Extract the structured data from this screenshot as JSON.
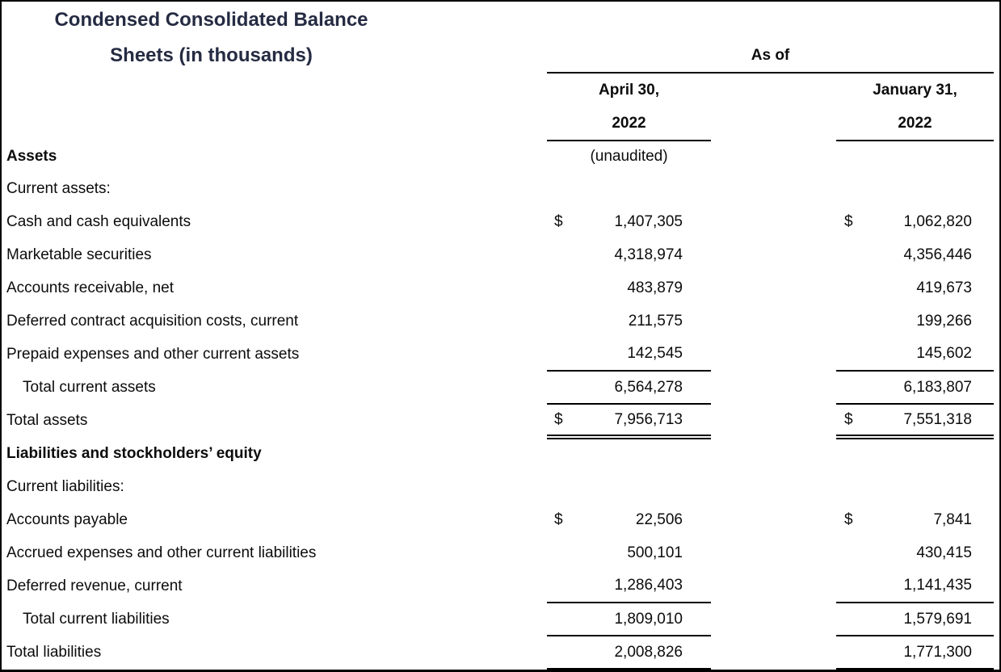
{
  "title": {
    "line1": "Condensed Consolidated Balance",
    "line2": "Sheets (in thousands)"
  },
  "header": {
    "as_of": "As of",
    "april": {
      "line1": "April 30,",
      "line2": "2022",
      "note": "(unaudited)"
    },
    "january": {
      "line1": "January 31,",
      "line2": "2022"
    }
  },
  "sections": {
    "assets": "Assets",
    "liabilities": "Liabilities and stockholders’ equity"
  },
  "rows": [
    {
      "label": "Current assets:"
    },
    {
      "label": "Cash and cash equivalents",
      "dollar": "$",
      "apr": "1,407,305",
      "jan": "1,062,820"
    },
    {
      "label": "Marketable securities",
      "apr": "4,318,974",
      "jan": "4,356,446"
    },
    {
      "label": "Accounts receivable, net",
      "apr": "483,879",
      "jan": "419,673"
    },
    {
      "label": "Deferred contract acquisition costs, current",
      "apr": "211,575",
      "jan": "199,266"
    },
    {
      "label": "Prepaid expenses and other current assets",
      "apr": "142,545",
      "jan": "145,602"
    },
    {
      "label": "Total current assets",
      "apr": "6,564,278",
      "jan": "6,183,807"
    },
    {
      "label": "Total assets",
      "dollar": "$",
      "apr": "7,956,713",
      "jan": "7,551,318"
    },
    {
      "label": "Current liabilities:"
    },
    {
      "label": "Accounts payable",
      "dollar": "$",
      "apr": "22,506",
      "jan": "7,841"
    },
    {
      "label": "Accrued expenses and other current liabilities",
      "apr": "500,101",
      "jan": "430,415"
    },
    {
      "label": "Deferred revenue, current",
      "apr": "1,286,403",
      "jan": "1,141,435"
    },
    {
      "label": "Total current liabilities",
      "apr": "1,809,010",
      "jan": "1,579,691"
    },
    {
      "label": "Total liabilities",
      "apr": "2,008,826",
      "jan": "1,771,300"
    }
  ],
  "colors": {
    "title": "#252b42",
    "text": "#0c0c0c",
    "rule": "#000000"
  }
}
